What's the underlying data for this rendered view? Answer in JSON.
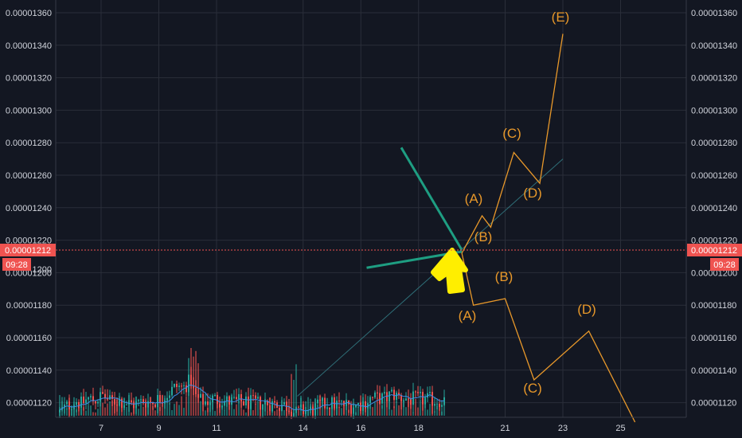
{
  "chart_data": {
    "type": "candlestick",
    "x_ticks": [
      "7",
      "9",
      "11",
      "14",
      "16",
      "18",
      "21",
      "23",
      "25"
    ],
    "y_ticks": [
      "0.00001360",
      "0.00001340",
      "0.00001320",
      "0.00001300",
      "0.00001280",
      "0.00001260",
      "0.00001240",
      "0.00001220",
      "0.00001200",
      "0.00001180",
      "0.00001160",
      "0.00001140",
      "0.00001120"
    ],
    "y_range": [
      1.11e-05,
      1.37e-05
    ],
    "current_price": {
      "label": "0.00001212",
      "value": 1.212e-05,
      "countdown": "09:28"
    },
    "hidden_left_label": "0.00001200",
    "pattern_lines": {
      "upper": [
        [
          17.4,
          1.277e-05
        ],
        [
          19.5,
          1.214e-05
        ]
      ],
      "lower": [
        [
          16.2,
          1.203e-05
        ],
        [
          19.5,
          1.213e-05
        ]
      ],
      "support": [
        [
          13.8,
          1.124e-05
        ],
        [
          23.0,
          1.27e-05
        ]
      ]
    },
    "wave_bullish": [
      [
        19.5,
        1.212e-05
      ],
      [
        20.2,
        1.235e-05
      ],
      [
        20.5,
        1.228e-05
      ],
      [
        21.3,
        1.274e-05
      ],
      [
        22.2,
        1.255e-05
      ],
      [
        23.0,
        1.347e-05
      ]
    ],
    "wave_bearish": [
      [
        19.5,
        1.212e-05
      ],
      [
        19.9,
        1.18e-05
      ],
      [
        21.0,
        1.184e-05
      ],
      [
        22.0,
        1.134e-05
      ],
      [
        23.9,
        1.164e-05
      ],
      [
        25.5,
        1.108e-05
      ]
    ],
    "wave_labels_bullish": [
      "(A)",
      "(B)",
      "(C)",
      "(D)",
      "(E)"
    ],
    "wave_labels_bearish": [
      "(A)",
      "(B)",
      "(C)",
      "(D)"
    ],
    "grid": true,
    "colors": {
      "background": "#131722",
      "grid": "#2a2e39",
      "up": "#26a69a",
      "down": "#ef5350",
      "ma": "#3d8ee8",
      "pattern": "#1e9e82",
      "wave": "#e8982a",
      "arrow": "#ffee00",
      "price_tag": "#ef5350",
      "axis_text": "#d1d4dc"
    }
  }
}
